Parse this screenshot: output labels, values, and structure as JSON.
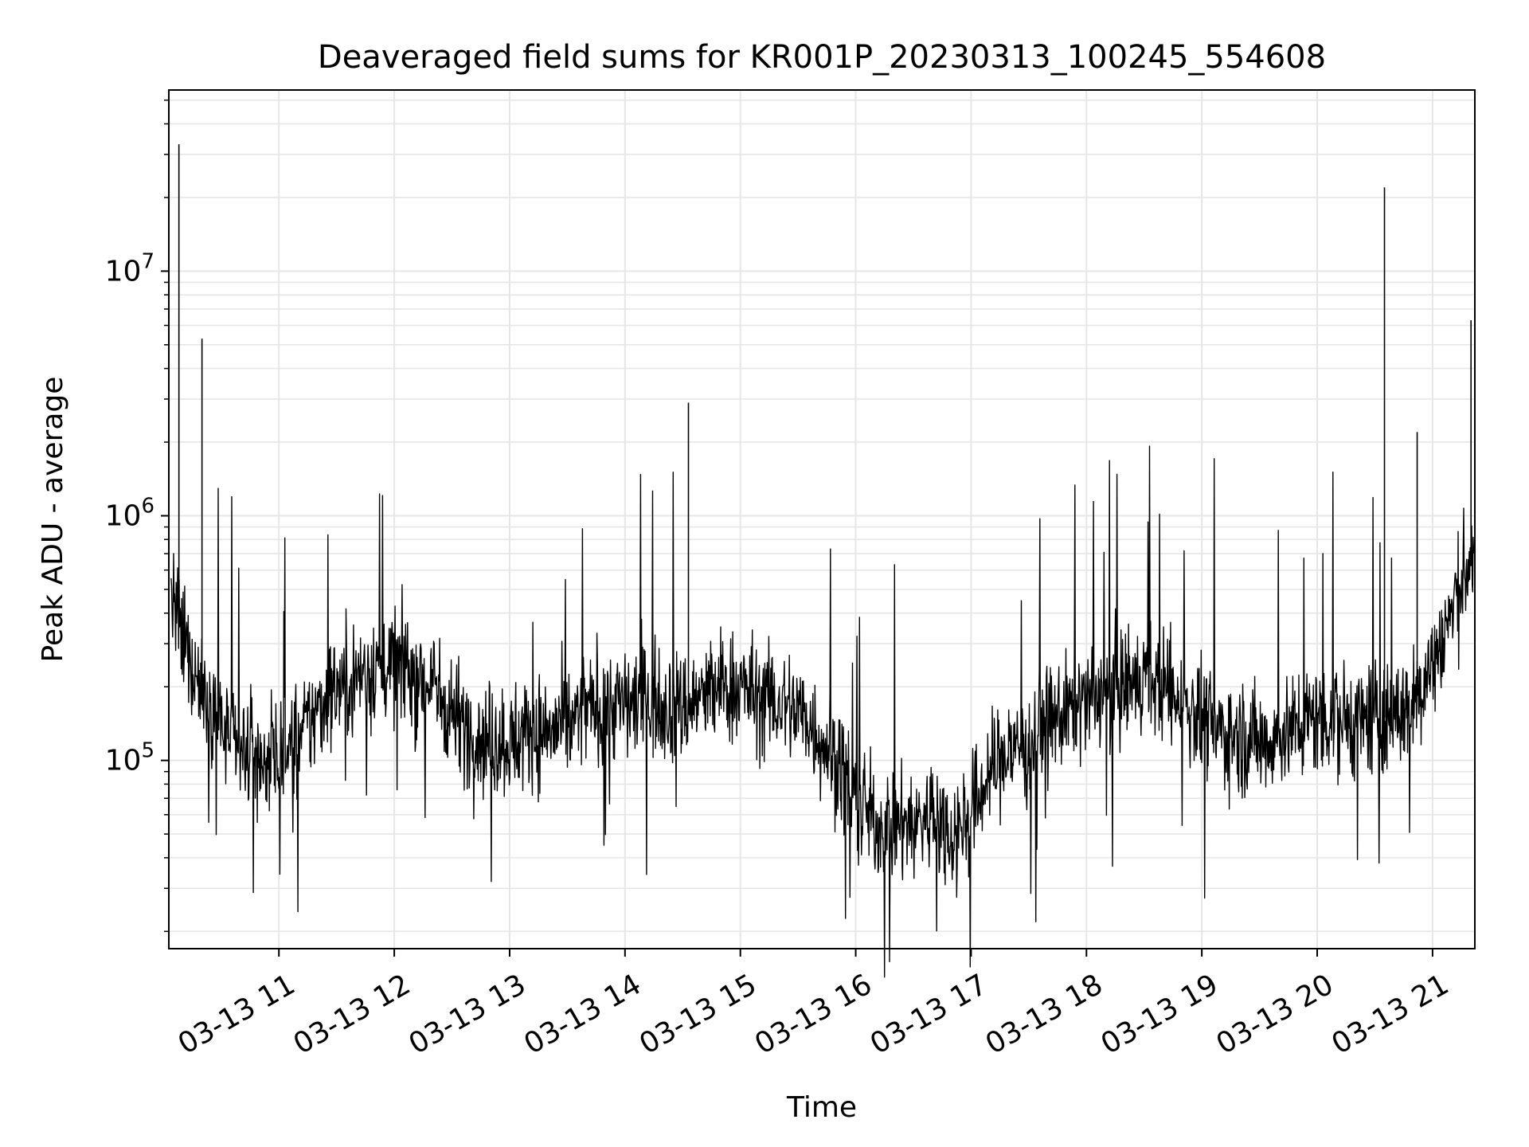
{
  "chart_data": {
    "type": "line",
    "title": "Deaveraged field sums for KR001P_20230313_100245_554608",
    "xlabel": "Time",
    "ylabel": "Peak ADU - average",
    "yscale": "log",
    "ylim": [
      17000,
      55000000
    ],
    "xlim": [
      "03-13 10:02:45",
      "03-13 21:22:00"
    ],
    "grid": true,
    "colors": {
      "line": "#000000",
      "grid": "#e6e6e6",
      "frame": "#000000"
    },
    "x_ticks": [
      {
        "label": "03-13 11",
        "hour": 11
      },
      {
        "label": "03-13 12",
        "hour": 12
      },
      {
        "label": "03-13 13",
        "hour": 13
      },
      {
        "label": "03-13 14",
        "hour": 14
      },
      {
        "label": "03-13 15",
        "hour": 15
      },
      {
        "label": "03-13 16",
        "hour": 16
      },
      {
        "label": "03-13 17",
        "hour": 17
      },
      {
        "label": "03-13 18",
        "hour": 18
      },
      {
        "label": "03-13 19",
        "hour": 19
      },
      {
        "label": "03-13 20",
        "hour": 20
      },
      {
        "label": "03-13 21",
        "hour": 21
      }
    ],
    "y_ticks": [
      {
        "base": "10",
        "exp": "5",
        "value": 100000
      },
      {
        "base": "10",
        "exp": "6",
        "value": 1000000
      },
      {
        "base": "10",
        "exp": "7",
        "value": 10000000
      }
    ],
    "series": [
      {
        "x": [
          "03-13 10:03",
          "03-13 10:10",
          "03-13 10:20",
          "03-13 10:30",
          "03-13 10:40",
          "03-13 10:50",
          "03-13 11:00",
          "03-13 11:10",
          "03-13 11:20",
          "03-13 11:30",
          "03-13 11:40",
          "03-13 11:50",
          "03-13 12:00",
          "03-13 12:10",
          "03-13 12:20",
          "03-13 12:30",
          "03-13 12:40",
          "03-13 12:50",
          "03-13 13:00",
          "03-13 13:10",
          "03-13 13:20",
          "03-13 13:30",
          "03-13 13:40",
          "03-13 13:50",
          "03-13 14:00",
          "03-13 14:10",
          "03-13 14:20",
          "03-13 14:30",
          "03-13 14:40",
          "03-13 14:50",
          "03-13 15:00",
          "03-13 15:10",
          "03-13 15:20",
          "03-13 15:30",
          "03-13 15:40",
          "03-13 15:50",
          "03-13 16:00",
          "03-13 16:10",
          "03-13 16:20",
          "03-13 16:30",
          "03-13 16:40",
          "03-13 16:50",
          "03-13 17:00",
          "03-13 17:10",
          "03-13 17:20",
          "03-13 17:30",
          "03-13 17:40",
          "03-13 17:50",
          "03-13 18:00",
          "03-13 18:10",
          "03-13 18:20",
          "03-13 18:30",
          "03-13 18:40",
          "03-13 18:50",
          "03-13 19:00",
          "03-13 19:10",
          "03-13 19:20",
          "03-13 19:30",
          "03-13 19:40",
          "03-13 19:50",
          "03-13 20:00",
          "03-13 20:10",
          "03-13 20:20",
          "03-13 20:30",
          "03-13 20:40",
          "03-13 20:50",
          "03-13 21:00",
          "03-13 21:10",
          "03-13 21:20"
        ],
        "y": [
          500000,
          300000,
          200000,
          140000,
          110000,
          100000,
          100000,
          120000,
          160000,
          200000,
          220000,
          240000,
          250000,
          230000,
          200000,
          160000,
          130000,
          120000,
          120000,
          130000,
          130000,
          140000,
          160000,
          170000,
          170000,
          180000,
          170000,
          165000,
          180000,
          200000,
          200000,
          180000,
          170000,
          160000,
          130000,
          100000,
          70000,
          55000,
          55000,
          55000,
          60000,
          50000,
          60000,
          90000,
          110000,
          120000,
          140000,
          160000,
          170000,
          190000,
          200000,
          210000,
          200000,
          170000,
          150000,
          130000,
          125000,
          120000,
          125000,
          140000,
          150000,
          150000,
          145000,
          150000,
          150000,
          170000,
          250000,
          400000,
          700000
        ]
      }
    ],
    "spikes": [
      {
        "x": "03-13 10:08",
        "y": 33000000
      },
      {
        "x": "03-13 10:20",
        "y": 5300000
      },
      {
        "x": "03-13 14:33",
        "y": 2900000
      },
      {
        "x": "03-13 20:35",
        "y": 22000000
      },
      {
        "x": "03-13 20:52",
        "y": 2200000
      },
      {
        "x": "03-13 21:20",
        "y": 6300000
      }
    ]
  }
}
